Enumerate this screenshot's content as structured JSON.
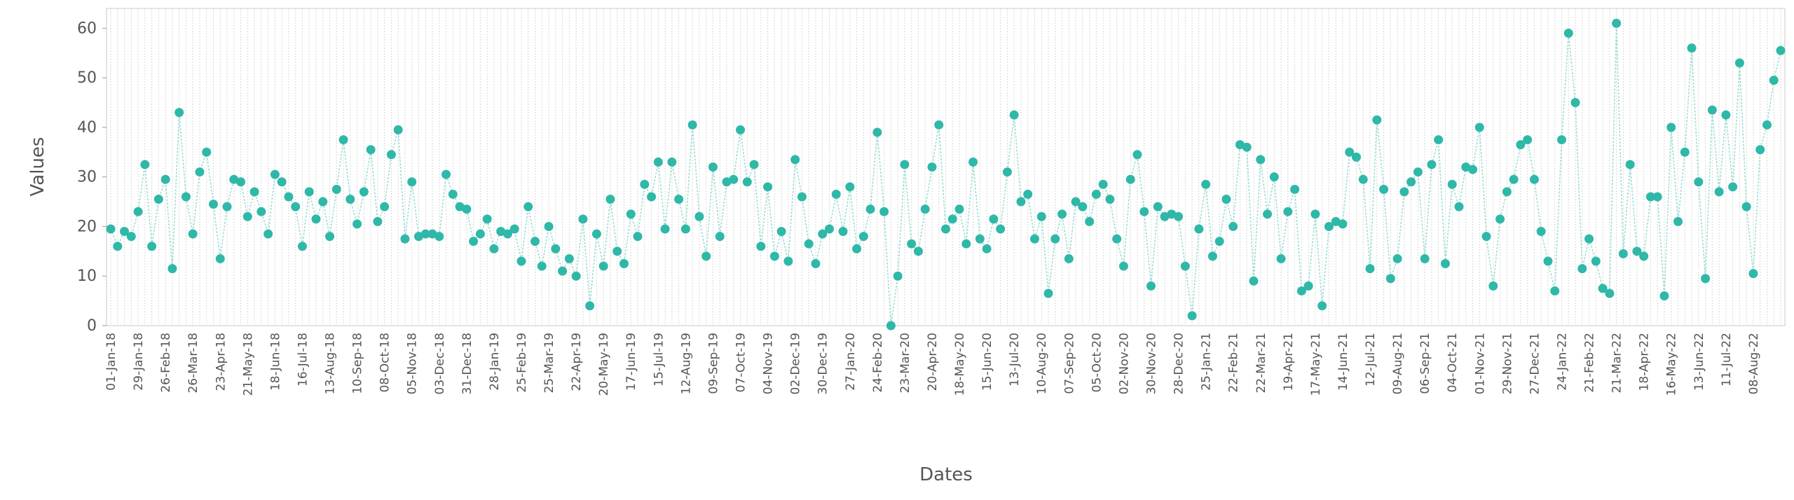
{
  "chart_data": {
    "type": "line",
    "x_label": "Dates",
    "y_label": "Values",
    "line_color": "#9adfd6",
    "marker_color": "#2fb8a8",
    "grid": true,
    "ylim": [
      0,
      64
    ],
    "yticks": [
      0,
      10,
      20,
      30,
      40,
      50,
      60
    ],
    "categories": [
      "01-Jan-18",
      null,
      null,
      null,
      "29-Jan-18",
      null,
      null,
      null,
      "26-Feb-18",
      null,
      null,
      null,
      "26-Mar-18",
      null,
      null,
      null,
      "23-Apr-18",
      null,
      null,
      null,
      "21-May-18",
      null,
      null,
      null,
      "18-Jun-18",
      null,
      null,
      null,
      "16-Jul-18",
      null,
      null,
      null,
      "13-Aug-18",
      null,
      null,
      null,
      "10-Sep-18",
      null,
      null,
      null,
      "08-Oct-18",
      null,
      null,
      null,
      "05-Nov-18",
      null,
      null,
      null,
      "03-Dec-18",
      null,
      null,
      null,
      "31-Dec-18",
      null,
      null,
      null,
      "28-Jan-19",
      null,
      null,
      null,
      "25-Feb-19",
      null,
      null,
      null,
      "25-Mar-19",
      null,
      null,
      null,
      "22-Apr-19",
      null,
      null,
      null,
      "20-May-19",
      null,
      null,
      null,
      "17-Jun-19",
      null,
      null,
      null,
      "15-Jul-19",
      null,
      null,
      null,
      "12-Aug-19",
      null,
      null,
      null,
      "09-Sep-19",
      null,
      null,
      null,
      "07-Oct-19",
      null,
      null,
      null,
      "04-Nov-19",
      null,
      null,
      null,
      "02-Dec-19",
      null,
      null,
      null,
      "30-Dec-19",
      null,
      null,
      null,
      "27-Jan-20",
      null,
      null,
      null,
      "24-Feb-20",
      null,
      null,
      null,
      "23-Mar-20",
      null,
      null,
      null,
      "20-Apr-20",
      null,
      null,
      null,
      "18-May-20",
      null,
      null,
      null,
      "15-Jun-20",
      null,
      null,
      null,
      "13-Jul-20",
      null,
      null,
      null,
      "10-Aug-20",
      null,
      null,
      null,
      "07-Sep-20",
      null,
      null,
      null,
      "05-Oct-20",
      null,
      null,
      null,
      "02-Nov-20",
      null,
      null,
      null,
      "30-Nov-20",
      null,
      null,
      null,
      "28-Dec-20",
      null,
      null,
      null,
      "25-Jan-21",
      null,
      null,
      null,
      "22-Feb-21",
      null,
      null,
      null,
      "22-Mar-21",
      null,
      null,
      null,
      "19-Apr-21",
      null,
      null,
      null,
      "17-May-21",
      null,
      null,
      null,
      "14-Jun-21",
      null,
      null,
      null,
      "12-Jul-21",
      null,
      null,
      null,
      "09-Aug-21",
      null,
      null,
      null,
      "06-Sep-21",
      null,
      null,
      null,
      "04-Oct-21",
      null,
      null,
      null,
      "01-Nov-21",
      null,
      null,
      null,
      "29-Nov-21",
      null,
      null,
      null,
      "27-Dec-21",
      null,
      null,
      null,
      "24-Jan-22",
      null,
      null,
      null,
      "21-Feb-22",
      null,
      null,
      null,
      "21-Mar-22",
      null,
      null,
      null,
      "18-Apr-22",
      null,
      null,
      null,
      "16-May-22",
      null,
      null,
      null,
      "13-Jun-22",
      null,
      null,
      null,
      "11-Jul-22",
      null,
      null,
      null,
      "08-Aug-22",
      null,
      null,
      null,
      null
    ],
    "values": [
      19.5,
      16,
      19,
      18,
      23,
      32.5,
      16,
      25.5,
      29.5,
      11.5,
      43,
      26,
      18.5,
      31,
      35,
      24.5,
      13.5,
      24,
      29.5,
      29,
      22,
      27,
      23,
      18.5,
      30.5,
      29,
      26,
      24,
      16,
      27,
      21.5,
      25,
      18,
      27.5,
      37.5,
      25.5,
      20.5,
      27,
      35.5,
      21,
      24,
      34.5,
      39.5,
      17.5,
      29,
      18,
      18.5,
      18.5,
      18,
      30.5,
      26.5,
      24,
      23.5,
      17,
      18.5,
      21.5,
      15.5,
      19,
      18.5,
      19.5,
      13,
      24,
      17,
      12,
      20,
      15.5,
      11,
      13.5,
      10,
      21.5,
      4,
      18.5,
      12,
      25.5,
      15,
      12.5,
      22.5,
      18,
      28.5,
      26,
      33,
      19.5,
      33,
      25.5,
      19.5,
      40.5,
      22,
      14,
      32,
      18,
      29,
      29.5,
      39.5,
      29,
      32.5,
      16,
      28,
      14,
      19,
      13,
      33.5,
      26,
      16.5,
      12.5,
      18.5,
      19.5,
      26.5,
      19,
      28,
      15.5,
      18,
      23.5,
      39,
      23,
      0,
      10,
      32.5,
      16.5,
      15,
      23.5,
      32,
      40.5,
      19.5,
      21.5,
      23.5,
      16.5,
      33,
      17.5,
      15.5,
      21.5,
      19.5,
      31,
      42.5,
      25,
      26.5,
      17.5,
      22,
      6.5,
      17.5,
      22.5,
      13.5,
      25,
      24,
      21,
      26.5,
      28.5,
      25.5,
      17.5,
      12,
      29.5,
      34.5,
      23,
      8,
      24,
      22,
      22.5,
      22,
      12,
      2,
      19.5,
      28.5,
      14,
      17,
      25.5,
      20,
      36.5,
      36,
      9,
      33.5,
      22.5,
      30,
      13.5,
      23,
      27.5,
      7,
      8,
      22.5,
      4,
      20,
      21,
      20.5,
      35,
      34,
      29.5,
      11.5,
      41.5,
      27.5,
      9.5,
      13.5,
      27,
      29,
      31,
      13.5,
      32.5,
      37.5,
      12.5,
      28.5,
      24,
      32,
      31.5,
      40,
      18,
      8,
      21.5,
      27,
      29.5,
      36.5,
      37.5,
      29.5,
      19,
      13,
      7,
      37.5,
      59,
      45,
      11.5,
      17.5,
      13,
      7.5,
      6.5,
      61,
      14.5,
      32.5,
      15,
      14,
      26,
      26,
      6,
      40,
      21,
      35,
      56,
      29,
      9.5,
      43.5,
      27,
      42.5,
      28,
      53,
      24,
      10.5,
      35.5,
      40.5,
      49.5,
      55.5
    ]
  }
}
